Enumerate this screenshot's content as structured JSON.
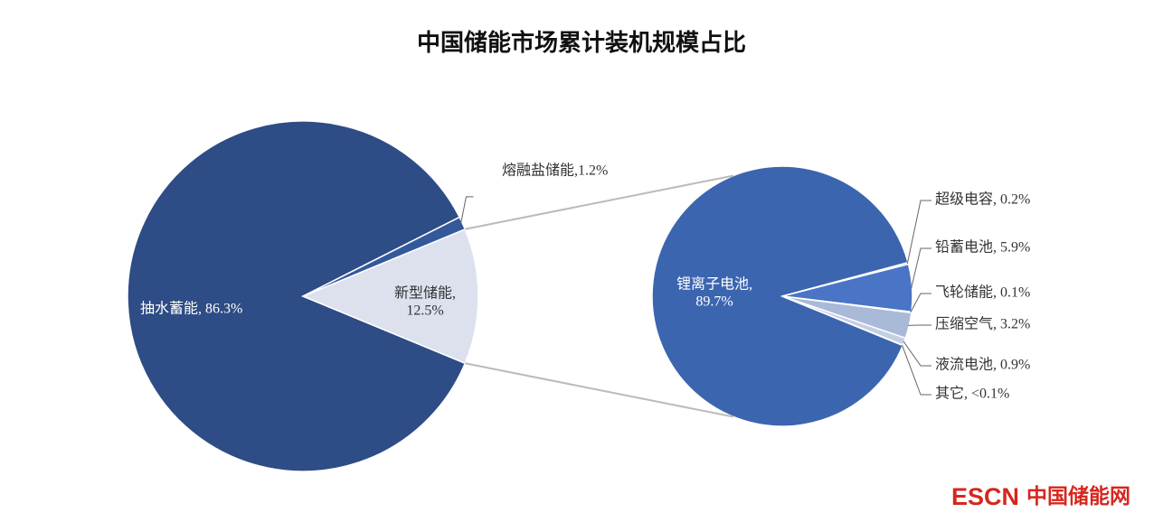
{
  "chart_data": [
    {
      "type": "pie",
      "title": "中国储能市场累计装机规模占比",
      "values": [
        86.3,
        12.5,
        1.2
      ],
      "value_labels": [
        "抽水蓄能, 86.3%",
        "新型储能,\n12.5%",
        "熔融盐储能,1.2%"
      ],
      "colors": [
        "#2e4c85",
        "#dde1ee",
        "#34599b"
      ]
    },
    {
      "type": "pie",
      "values": [
        89.7,
        0.2,
        5.9,
        0.1,
        3.2,
        0.9,
        0.05
      ],
      "value_labels": [
        "锂离子电池,\n89.7%",
        "超级电容, 0.2%",
        "铅蓄电池, 5.9%",
        "飞轮储能, 0.1%",
        "压缩空气, 3.2%",
        "液流电池, 0.9%",
        "其它, <0.1%"
      ],
      "colors": [
        "#3c65b0",
        "#3c65b0",
        "#4a74c6",
        "#7f97c8",
        "#a9b9d8",
        "#c4cee4",
        "#d6dcec"
      ]
    }
  ],
  "watermark": [
    "ESCN",
    "中国储能网"
  ]
}
